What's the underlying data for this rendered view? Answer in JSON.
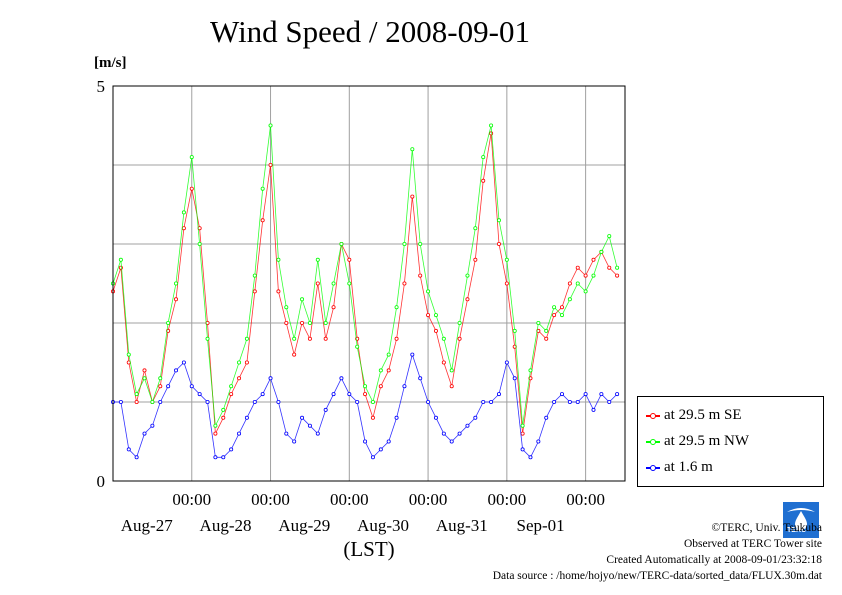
{
  "chart_data": {
    "type": "line",
    "title": "Wind Speed / 2008-09-01",
    "ylabel": "[m/s]",
    "xlabel": "(LST)",
    "ylim": [
      0,
      5
    ],
    "xlim": [
      0,
      6.5
    ],
    "y_ticks": [
      {
        "value": 0,
        "label": "0"
      },
      {
        "value": 5,
        "label": "5"
      }
    ],
    "y_gridlines": [
      1,
      2,
      3,
      4
    ],
    "x_ticks": [
      {
        "value": 1,
        "time": "00:00",
        "date": "Aug-27"
      },
      {
        "value": 2,
        "time": "00:00",
        "date": "Aug-28"
      },
      {
        "value": 3,
        "time": "00:00",
        "date": "Aug-29"
      },
      {
        "value": 4,
        "time": "00:00",
        "date": "Aug-30"
      },
      {
        "value": 5,
        "time": "00:00",
        "date": "Aug-31"
      },
      {
        "value": 6,
        "time": "00:00",
        "date": "Sep-01"
      }
    ],
    "grid": true,
    "legend_position": "right",
    "series": [
      {
        "name": "at 29.5 m SE",
        "color": "#ff0000",
        "points": [
          [
            0,
            2.4
          ],
          [
            0.1,
            2.7
          ],
          [
            0.2,
            1.5
          ],
          [
            0.3,
            1.0
          ],
          [
            0.4,
            1.4
          ],
          [
            0.5,
            1.0
          ],
          [
            0.6,
            1.2
          ],
          [
            0.7,
            1.9
          ],
          [
            0.8,
            2.3
          ],
          [
            0.9,
            3.2
          ],
          [
            1.0,
            3.7
          ],
          [
            1.1,
            3.2
          ],
          [
            1.2,
            2.0
          ],
          [
            1.3,
            0.6
          ],
          [
            1.4,
            0.8
          ],
          [
            1.5,
            1.1
          ],
          [
            1.6,
            1.3
          ],
          [
            1.7,
            1.5
          ],
          [
            1.8,
            2.4
          ],
          [
            1.9,
            3.3
          ],
          [
            2.0,
            4.0
          ],
          [
            2.1,
            2.4
          ],
          [
            2.2,
            2.0
          ],
          [
            2.3,
            1.6
          ],
          [
            2.4,
            2.0
          ],
          [
            2.5,
            1.8
          ],
          [
            2.6,
            2.5
          ],
          [
            2.7,
            1.8
          ],
          [
            2.8,
            2.2
          ],
          [
            2.9,
            3.0
          ],
          [
            3.0,
            2.8
          ],
          [
            3.1,
            1.8
          ],
          [
            3.2,
            1.1
          ],
          [
            3.3,
            0.8
          ],
          [
            3.4,
            1.2
          ],
          [
            3.5,
            1.4
          ],
          [
            3.6,
            1.8
          ],
          [
            3.7,
            2.5
          ],
          [
            3.8,
            3.6
          ],
          [
            3.9,
            2.6
          ],
          [
            4.0,
            2.1
          ],
          [
            4.1,
            1.9
          ],
          [
            4.2,
            1.5
          ],
          [
            4.3,
            1.2
          ],
          [
            4.4,
            1.8
          ],
          [
            4.5,
            2.3
          ],
          [
            4.6,
            2.8
          ],
          [
            4.7,
            3.8
          ],
          [
            4.8,
            4.4
          ],
          [
            4.9,
            3.0
          ],
          [
            5.0,
            2.5
          ],
          [
            5.1,
            1.7
          ],
          [
            5.2,
            0.6
          ],
          [
            5.3,
            1.3
          ],
          [
            5.4,
            1.9
          ],
          [
            5.5,
            1.8
          ],
          [
            5.6,
            2.1
          ],
          [
            5.7,
            2.2
          ],
          [
            5.8,
            2.5
          ],
          [
            5.9,
            2.7
          ],
          [
            6.0,
            2.6
          ],
          [
            6.1,
            2.8
          ],
          [
            6.2,
            2.9
          ],
          [
            6.3,
            2.7
          ],
          [
            6.4,
            2.6
          ]
        ]
      },
      {
        "name": "at 29.5 m NW",
        "color": "#00ff00",
        "points": [
          [
            0,
            2.5
          ],
          [
            0.1,
            2.8
          ],
          [
            0.2,
            1.6
          ],
          [
            0.3,
            1.1
          ],
          [
            0.4,
            1.3
          ],
          [
            0.5,
            1.0
          ],
          [
            0.6,
            1.3
          ],
          [
            0.7,
            2.0
          ],
          [
            0.8,
            2.5
          ],
          [
            0.9,
            3.4
          ],
          [
            1.0,
            4.1
          ],
          [
            1.1,
            3.0
          ],
          [
            1.2,
            1.8
          ],
          [
            1.3,
            0.7
          ],
          [
            1.4,
            0.9
          ],
          [
            1.5,
            1.2
          ],
          [
            1.6,
            1.5
          ],
          [
            1.7,
            1.8
          ],
          [
            1.8,
            2.6
          ],
          [
            1.9,
            3.7
          ],
          [
            2.0,
            4.5
          ],
          [
            2.1,
            2.8
          ],
          [
            2.2,
            2.2
          ],
          [
            2.3,
            1.8
          ],
          [
            2.4,
            2.3
          ],
          [
            2.5,
            2.0
          ],
          [
            2.6,
            2.8
          ],
          [
            2.7,
            2.0
          ],
          [
            2.8,
            2.5
          ],
          [
            2.9,
            3.0
          ],
          [
            3.0,
            2.5
          ],
          [
            3.1,
            1.7
          ],
          [
            3.2,
            1.2
          ],
          [
            3.3,
            1.0
          ],
          [
            3.4,
            1.4
          ],
          [
            3.5,
            1.6
          ],
          [
            3.6,
            2.2
          ],
          [
            3.7,
            3.0
          ],
          [
            3.8,
            4.2
          ],
          [
            3.9,
            3.0
          ],
          [
            4.0,
            2.4
          ],
          [
            4.1,
            2.1
          ],
          [
            4.2,
            1.8
          ],
          [
            4.3,
            1.4
          ],
          [
            4.4,
            2.0
          ],
          [
            4.5,
            2.6
          ],
          [
            4.6,
            3.2
          ],
          [
            4.7,
            4.1
          ],
          [
            4.8,
            4.5
          ],
          [
            4.9,
            3.3
          ],
          [
            5.0,
            2.8
          ],
          [
            5.1,
            1.9
          ],
          [
            5.2,
            0.7
          ],
          [
            5.3,
            1.4
          ],
          [
            5.4,
            2.0
          ],
          [
            5.5,
            1.9
          ],
          [
            5.6,
            2.2
          ],
          [
            5.7,
            2.1
          ],
          [
            5.8,
            2.3
          ],
          [
            5.9,
            2.5
          ],
          [
            6.0,
            2.4
          ],
          [
            6.1,
            2.6
          ],
          [
            6.2,
            2.9
          ],
          [
            6.3,
            3.1
          ],
          [
            6.4,
            2.7
          ]
        ]
      },
      {
        "name": "at 1.6 m",
        "color": "#0000ff",
        "points": [
          [
            0,
            1.0
          ],
          [
            0.1,
            1.0
          ],
          [
            0.2,
            0.4
          ],
          [
            0.3,
            0.3
          ],
          [
            0.4,
            0.6
          ],
          [
            0.5,
            0.7
          ],
          [
            0.6,
            1.0
          ],
          [
            0.7,
            1.2
          ],
          [
            0.8,
            1.4
          ],
          [
            0.9,
            1.5
          ],
          [
            1.0,
            1.2
          ],
          [
            1.1,
            1.1
          ],
          [
            1.2,
            1.0
          ],
          [
            1.3,
            0.3
          ],
          [
            1.4,
            0.3
          ],
          [
            1.5,
            0.4
          ],
          [
            1.6,
            0.6
          ],
          [
            1.7,
            0.8
          ],
          [
            1.8,
            1.0
          ],
          [
            1.9,
            1.1
          ],
          [
            2.0,
            1.3
          ],
          [
            2.1,
            1.0
          ],
          [
            2.2,
            0.6
          ],
          [
            2.3,
            0.5
          ],
          [
            2.4,
            0.8
          ],
          [
            2.5,
            0.7
          ],
          [
            2.6,
            0.6
          ],
          [
            2.7,
            0.9
          ],
          [
            2.8,
            1.1
          ],
          [
            2.9,
            1.3
          ],
          [
            3.0,
            1.1
          ],
          [
            3.1,
            1.0
          ],
          [
            3.2,
            0.5
          ],
          [
            3.3,
            0.3
          ],
          [
            3.4,
            0.4
          ],
          [
            3.5,
            0.5
          ],
          [
            3.6,
            0.8
          ],
          [
            3.7,
            1.2
          ],
          [
            3.8,
            1.6
          ],
          [
            3.9,
            1.3
          ],
          [
            4.0,
            1.0
          ],
          [
            4.1,
            0.8
          ],
          [
            4.2,
            0.6
          ],
          [
            4.3,
            0.5
          ],
          [
            4.4,
            0.6
          ],
          [
            4.5,
            0.7
          ],
          [
            4.6,
            0.8
          ],
          [
            4.7,
            1.0
          ],
          [
            4.8,
            1.0
          ],
          [
            4.9,
            1.1
          ],
          [
            5.0,
            1.5
          ],
          [
            5.1,
            1.3
          ],
          [
            5.2,
            0.4
          ],
          [
            5.3,
            0.3
          ],
          [
            5.4,
            0.5
          ],
          [
            5.5,
            0.8
          ],
          [
            5.6,
            1.0
          ],
          [
            5.7,
            1.1
          ],
          [
            5.8,
            1.0
          ],
          [
            5.9,
            1.0
          ],
          [
            6.0,
            1.1
          ],
          [
            6.1,
            0.9
          ],
          [
            6.2,
            1.1
          ],
          [
            6.3,
            1.0
          ],
          [
            6.4,
            1.1
          ]
        ]
      }
    ]
  },
  "credits": {
    "copyright": "©TERC, Univ. Tsukuba",
    "observed": "Observed at TERC Tower site",
    "created": "Created Automatically at 2008-09-01/23:32:18",
    "source": "Data source : /home/hojyo/new/TERC-data/sorted_data/FLUX.30m.dat",
    "logo_text": "TERC"
  }
}
